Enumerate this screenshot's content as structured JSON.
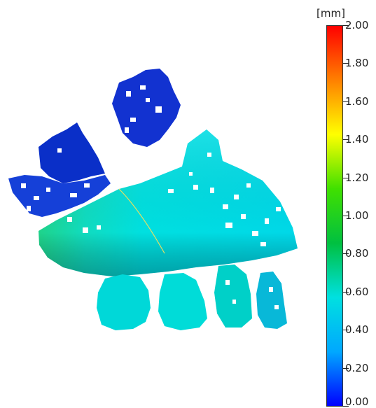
{
  "chart_data": {
    "type": "heatmap",
    "unit": "[mm]",
    "colorbar": {
      "min": 0.0,
      "max": 2.0,
      "ticks": [
        "2.00",
        "1.80",
        "1.60",
        "1.40",
        "1.20",
        "1.00",
        "0.80",
        "0.60",
        "0.40",
        "0.20",
        "0.00"
      ],
      "tick_values": [
        2.0,
        1.8,
        1.6,
        1.4,
        1.2,
        1.0,
        0.8,
        0.6,
        0.4,
        0.2,
        0.0
      ],
      "colormap": [
        "#0000ff",
        "#00a8ff",
        "#00e0e0",
        "#00c040",
        "#40e000",
        "#ffff00",
        "#ff8000",
        "#ff0000"
      ]
    },
    "regions": [
      {
        "name": "upper-left-patch",
        "approx_deviation_mm": 0.1
      },
      {
        "name": "upper-center-patch",
        "approx_deviation_mm": 0.08
      },
      {
        "name": "main-body",
        "approx_deviation_mm": 0.5
      },
      {
        "name": "main-body-left-edge",
        "approx_deviation_mm": 0.7
      },
      {
        "name": "lower-segment-1",
        "approx_deviation_mm": 0.5
      },
      {
        "name": "lower-segment-2",
        "approx_deviation_mm": 0.5
      },
      {
        "name": "lower-segment-3",
        "approx_deviation_mm": 0.55
      },
      {
        "name": "lower-segment-4",
        "approx_deviation_mm": 0.35
      }
    ]
  }
}
